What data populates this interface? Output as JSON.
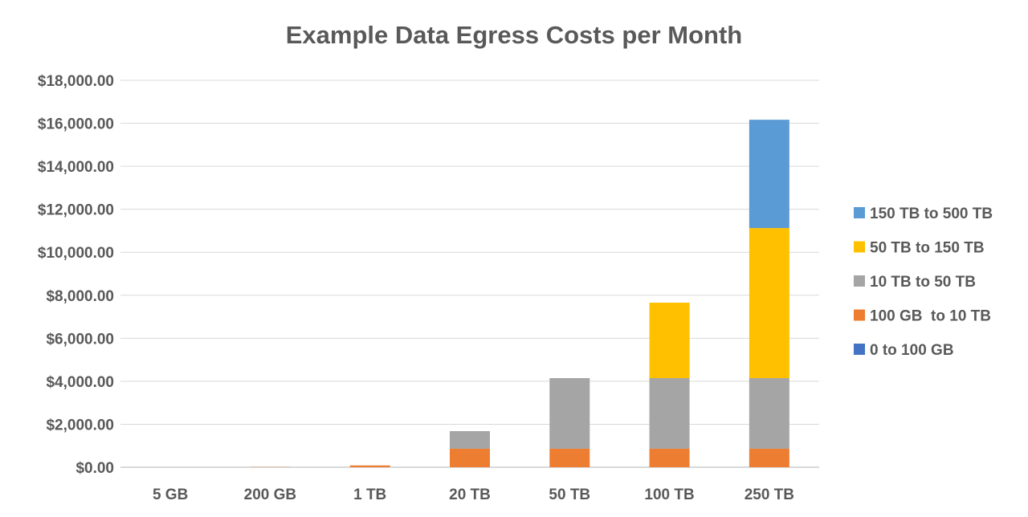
{
  "chart_data": {
    "type": "bar",
    "stacked": true,
    "title": "Example Data Egress Costs per Month",
    "xlabel": "",
    "ylabel": "",
    "ylim": [
      0,
      18000
    ],
    "yticks": [
      "$0.00",
      "$2,000.00",
      "$4,000.00",
      "$6,000.00",
      "$8,000.00",
      "$10,000.00",
      "$12,000.00",
      "$14,000.00",
      "$16,000.00",
      "$18,000.00"
    ],
    "grid": true,
    "legend_position": "right",
    "categories": [
      "5 GB",
      "200 GB",
      "1 TB",
      "20 TB",
      "50 TB",
      "100 TB",
      "250 TB"
    ],
    "series": [
      {
        "name": "0 to 100 GB",
        "color": "#4472C4",
        "values": [
          0,
          0,
          0,
          0,
          0,
          0,
          0
        ]
      },
      {
        "name": "100 GB  to 10 TB",
        "color": "#ED7D31",
        "values": [
          0,
          9,
          83,
          860,
          860,
          860,
          860
        ]
      },
      {
        "name": "10 TB to 50 TB",
        "color": "#A5A5A5",
        "values": [
          0,
          0,
          0,
          820,
          3285,
          3285,
          3285
        ]
      },
      {
        "name": "50 TB to 150 TB",
        "color": "#FFC000",
        "values": [
          0,
          0,
          0,
          0,
          0,
          3510,
          6980
        ]
      },
      {
        "name": "150 TB to 500 TB",
        "color": "#5B9BD5",
        "values": [
          0,
          0,
          0,
          0,
          0,
          0,
          5040
        ]
      }
    ]
  }
}
